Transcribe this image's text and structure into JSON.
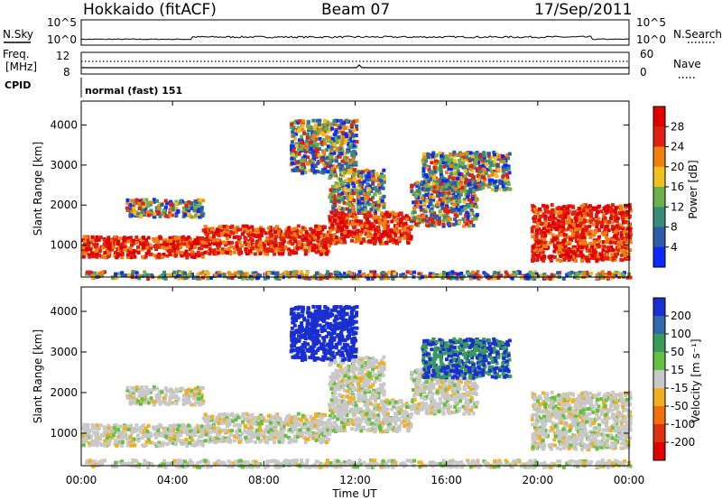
{
  "header": {
    "radar": "Hokkaido (fitACF)",
    "beam": "Beam 07",
    "date": "17/Sep/2011"
  },
  "status_panels": {
    "nsky_label": "N.Sky",
    "nsearch_label": "N.Search",
    "freq_label_line1": "Freq.",
    "freq_label_line2": "[MHz]",
    "nave_label": "Nave",
    "cpid_label": "CPID",
    "cpid_value": "normal (fast) 151",
    "noise_left_ticks": [
      "10^5",
      "10^0"
    ],
    "noise_right_ticks": [
      "10^5",
      "10^0"
    ],
    "freq_left_ticks": [
      "12",
      "8"
    ],
    "nave_right_ticks": [
      "60",
      "0"
    ]
  },
  "chart_data": [
    {
      "type": "heatmap",
      "name": "power",
      "ylabel": "Slant Range [km]",
      "y_ticks": [
        1000,
        2000,
        3000,
        4000
      ],
      "ylim": [
        200,
        4600
      ],
      "colorbar_title": "Power [dB]",
      "colorbar_ticks": [
        4,
        8,
        12,
        16,
        20,
        24,
        28
      ],
      "colorbar_range": [
        0,
        32
      ],
      "colors": [
        "#0a2bff",
        "#2f5aa8",
        "#3a8a7a",
        "#6ab04c",
        "#f0c020",
        "#f08010",
        "#e02010",
        "#e00000"
      ]
    },
    {
      "type": "heatmap",
      "name": "velocity",
      "ylabel": "Slant Range [km]",
      "y_ticks": [
        1000,
        2000,
        3000,
        4000
      ],
      "ylim": [
        200,
        4600
      ],
      "colorbar_title": "Velocity [m s⁻¹]",
      "colorbar_ticks": [
        200,
        100,
        50,
        15,
        -15,
        -50,
        -100,
        -200
      ],
      "colorbar_range": [
        -250,
        250
      ],
      "colors": [
        "#1a2fd0",
        "#2f6ab0",
        "#3a9a5a",
        "#66c040",
        "#c8c8c8",
        "#f0b020",
        "#f07010",
        "#e03010",
        "#e00000"
      ]
    }
  ],
  "time_axis": {
    "label": "Time UT",
    "ticks": [
      "00:00",
      "04:00",
      "08:00",
      "12:00",
      "16:00",
      "20:00",
      "00:00"
    ]
  }
}
